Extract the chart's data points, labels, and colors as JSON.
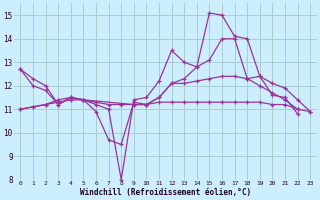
{
  "title": "",
  "xlabel": "Windchill (Refroidissement éolien,°C)",
  "ylabel": "",
  "bg_color": "#cceeff",
  "grid_color": "#aacccc",
  "line_color": "#993399",
  "xlim": [
    -0.5,
    23.5
  ],
  "ylim": [
    8,
    15.5
  ],
  "yticks": [
    8,
    9,
    10,
    11,
    12,
    13,
    14,
    15
  ],
  "xticks": [
    0,
    1,
    2,
    3,
    4,
    5,
    6,
    7,
    8,
    9,
    10,
    11,
    12,
    13,
    14,
    15,
    16,
    17,
    18,
    19,
    20,
    21,
    22,
    23
  ],
  "xtick_labels": [
    "0",
    "1",
    "2",
    "3",
    "4",
    "5",
    "6",
    "7",
    "8",
    "9",
    "10",
    "11",
    "12",
    "13",
    "14",
    "15",
    "16",
    "17",
    "18",
    "19",
    "20",
    "21",
    "22",
    "23"
  ],
  "lines": [
    {
      "x": [
        0,
        1,
        2,
        3,
        4,
        5,
        6,
        7,
        8,
        9,
        10,
        11,
        12,
        13,
        14,
        15,
        16,
        17,
        18,
        19,
        20,
        21,
        22
      ],
      "y": [
        12.7,
        12.3,
        12.0,
        11.2,
        11.5,
        11.4,
        11.2,
        11.0,
        8.0,
        11.4,
        11.5,
        12.2,
        13.5,
        13.0,
        12.8,
        15.1,
        15.0,
        14.1,
        14.0,
        12.4,
        11.6,
        11.5,
        10.8
      ]
    },
    {
      "x": [
        0,
        1,
        2,
        3,
        4,
        5,
        6,
        7,
        8,
        9,
        10,
        11,
        12,
        13,
        14,
        15,
        16,
        17,
        18,
        19,
        20,
        21,
        22
      ],
      "y": [
        12.7,
        12.0,
        11.8,
        11.2,
        11.5,
        11.4,
        10.9,
        9.7,
        9.5,
        11.3,
        11.2,
        11.5,
        12.1,
        12.3,
        12.8,
        13.1,
        14.0,
        14.0,
        12.3,
        12.0,
        11.7,
        11.4,
        11.0
      ]
    },
    {
      "x": [
        0,
        1,
        2,
        3,
        4,
        5,
        9,
        10,
        11,
        12,
        13,
        14,
        15,
        16,
        17,
        18,
        19,
        20,
        21,
        22,
        23
      ],
      "y": [
        11.0,
        11.1,
        11.2,
        11.4,
        11.5,
        11.4,
        11.2,
        11.2,
        11.5,
        12.1,
        12.1,
        12.2,
        12.3,
        12.4,
        12.4,
        12.3,
        12.4,
        12.1,
        11.9,
        11.4,
        10.9
      ]
    },
    {
      "x": [
        0,
        1,
        2,
        3,
        4,
        5,
        6,
        7,
        8,
        9,
        10,
        11,
        12,
        13,
        14,
        15,
        16,
        17,
        18,
        19,
        20,
        21,
        22,
        23
      ],
      "y": [
        11.0,
        11.1,
        11.2,
        11.3,
        11.4,
        11.4,
        11.3,
        11.2,
        11.2,
        11.2,
        11.2,
        11.3,
        11.3,
        11.3,
        11.3,
        11.3,
        11.3,
        11.3,
        11.3,
        11.3,
        11.2,
        11.2,
        11.0,
        10.9
      ]
    }
  ]
}
